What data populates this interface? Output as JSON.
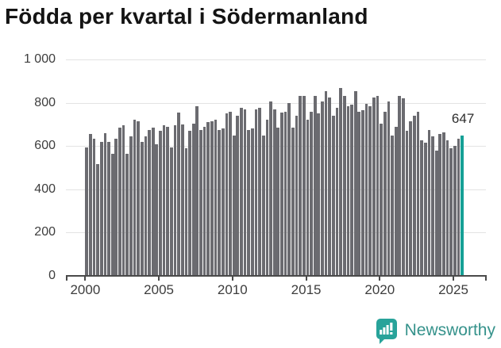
{
  "title": "Födda per kvartal i Södermanland",
  "annotation": {
    "value_label": "647"
  },
  "branding": {
    "name": "Newsworthy",
    "icon": "newsworthy-chart-bubble-icon"
  },
  "colors": {
    "bar": "#6b6b70",
    "highlight": "#16a096",
    "brand_teal": "#35928b",
    "axis": "#4a4a4a",
    "gridline": "#e3e3e3"
  },
  "chart_data": {
    "type": "bar",
    "title": "Födda per kvartal i Södermanland",
    "xlabel": "",
    "ylabel": "",
    "ylim": [
      0,
      1000
    ],
    "grid": "horizontal",
    "legend": "none",
    "y_ticks": [
      0,
      200,
      400,
      600,
      800,
      1000
    ],
    "y_tick_labels": [
      "0",
      "200",
      "400",
      "600",
      "800",
      "1 000"
    ],
    "x_tick_years": [
      2000,
      2005,
      2010,
      2015,
      2020,
      2025
    ],
    "x_tick_labels": [
      "2000",
      "2005",
      "2010",
      "2015",
      "2020",
      "2025"
    ],
    "categories": [
      "2000-Q1",
      "2000-Q2",
      "2000-Q3",
      "2000-Q4",
      "2001-Q1",
      "2001-Q2",
      "2001-Q3",
      "2001-Q4",
      "2002-Q1",
      "2002-Q2",
      "2002-Q3",
      "2002-Q4",
      "2003-Q1",
      "2003-Q2",
      "2003-Q3",
      "2003-Q4",
      "2004-Q1",
      "2004-Q2",
      "2004-Q3",
      "2004-Q4",
      "2005-Q1",
      "2005-Q2",
      "2005-Q3",
      "2005-Q4",
      "2006-Q1",
      "2006-Q2",
      "2006-Q3",
      "2006-Q4",
      "2007-Q1",
      "2007-Q2",
      "2007-Q3",
      "2007-Q4",
      "2008-Q1",
      "2008-Q2",
      "2008-Q3",
      "2008-Q4",
      "2009-Q1",
      "2009-Q2",
      "2009-Q3",
      "2009-Q4",
      "2010-Q1",
      "2010-Q2",
      "2010-Q3",
      "2010-Q4",
      "2011-Q1",
      "2011-Q2",
      "2011-Q3",
      "2011-Q4",
      "2012-Q1",
      "2012-Q2",
      "2012-Q3",
      "2012-Q4",
      "2013-Q1",
      "2013-Q2",
      "2013-Q3",
      "2013-Q4",
      "2014-Q1",
      "2014-Q2",
      "2014-Q3",
      "2014-Q4",
      "2015-Q1",
      "2015-Q2",
      "2015-Q3",
      "2015-Q4",
      "2016-Q1",
      "2016-Q2",
      "2016-Q3",
      "2016-Q4",
      "2017-Q1",
      "2017-Q2",
      "2017-Q3",
      "2017-Q4",
      "2018-Q1",
      "2018-Q2",
      "2018-Q3",
      "2018-Q4",
      "2019-Q1",
      "2019-Q2",
      "2019-Q3",
      "2019-Q4",
      "2020-Q1",
      "2020-Q2",
      "2020-Q3",
      "2020-Q4",
      "2021-Q1",
      "2021-Q2",
      "2021-Q3",
      "2021-Q4",
      "2022-Q1",
      "2022-Q2",
      "2022-Q3",
      "2022-Q4",
      "2023-Q1",
      "2023-Q2",
      "2023-Q3",
      "2023-Q4",
      "2024-Q1",
      "2024-Q2",
      "2024-Q3",
      "2024-Q4",
      "2025-Q1",
      "2025-Q2",
      "2025-Q3"
    ],
    "values": [
      595,
      655,
      635,
      515,
      620,
      660,
      620,
      565,
      635,
      685,
      695,
      565,
      645,
      720,
      715,
      620,
      645,
      675,
      685,
      610,
      670,
      695,
      690,
      595,
      695,
      755,
      700,
      590,
      670,
      705,
      785,
      675,
      690,
      710,
      715,
      720,
      675,
      680,
      750,
      760,
      650,
      740,
      775,
      770,
      675,
      680,
      770,
      775,
      650,
      720,
      805,
      770,
      685,
      755,
      760,
      800,
      685,
      740,
      830,
      830,
      720,
      760,
      830,
      750,
      805,
      855,
      825,
      740,
      775,
      870,
      830,
      785,
      790,
      855,
      760,
      765,
      795,
      785,
      825,
      830,
      705,
      760,
      805,
      650,
      690,
      830,
      820,
      670,
      715,
      740,
      760,
      625,
      615,
      675,
      645,
      580,
      655,
      665,
      625,
      590,
      600,
      635,
      647
    ],
    "highlight_index": 102,
    "highlight_value": 647
  }
}
